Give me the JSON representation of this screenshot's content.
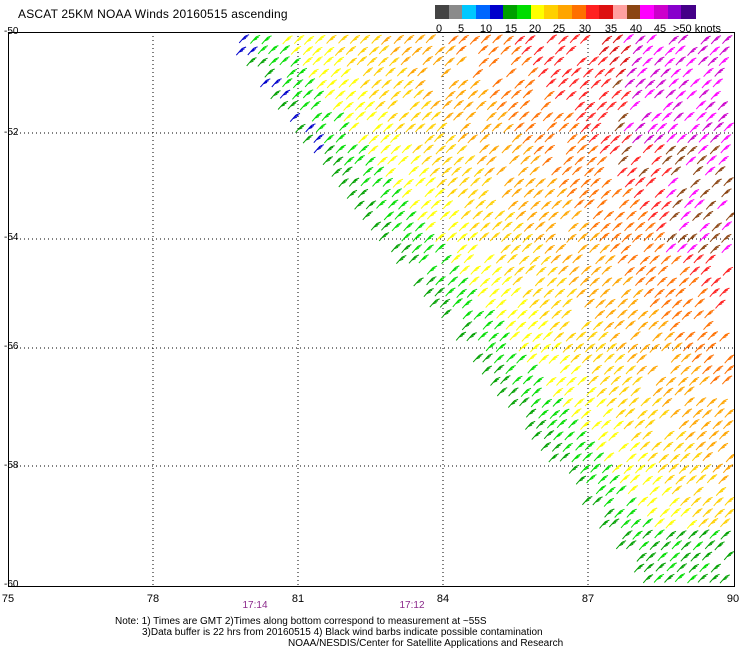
{
  "title": "ASCAT 25KM NOAA Winds 20160515 ascending",
  "legend": {
    "labels": [
      "0",
      "5",
      "10",
      "15",
      "20",
      "25",
      "30",
      "35",
      "40",
      "45",
      ">50 knots"
    ],
    "colors": [
      "#444444",
      "#8a8a8a",
      "#00c8ff",
      "#0066ff",
      "#0000cc",
      "#00a000",
      "#00dd00",
      "#ffff00",
      "#ffd000",
      "#ffa500",
      "#ff7000",
      "#ff2020",
      "#dd1010",
      "#ffa0a0",
      "#8b4513",
      "#ff00ff",
      "#cc00cc",
      "#8800cc",
      "#440088"
    ]
  },
  "axes": {
    "y_labels": [
      "-50",
      "-52",
      "-54",
      "-56",
      "-58",
      "-60"
    ],
    "x_labels": [
      "75",
      "78",
      "81",
      "84",
      "87",
      "90"
    ]
  },
  "times": [
    "17:14",
    "17:12"
  ],
  "notes": [
    "Note: 1) Times are GMT 2)Times along bottom correspond to measurement at ~55S",
    "3)Data buffer is 22 hrs from 20160515 4) Black wind barbs indicate possible contamination",
    "NOAA/NESDIS/Center for Satellite Applications and Research"
  ]
}
